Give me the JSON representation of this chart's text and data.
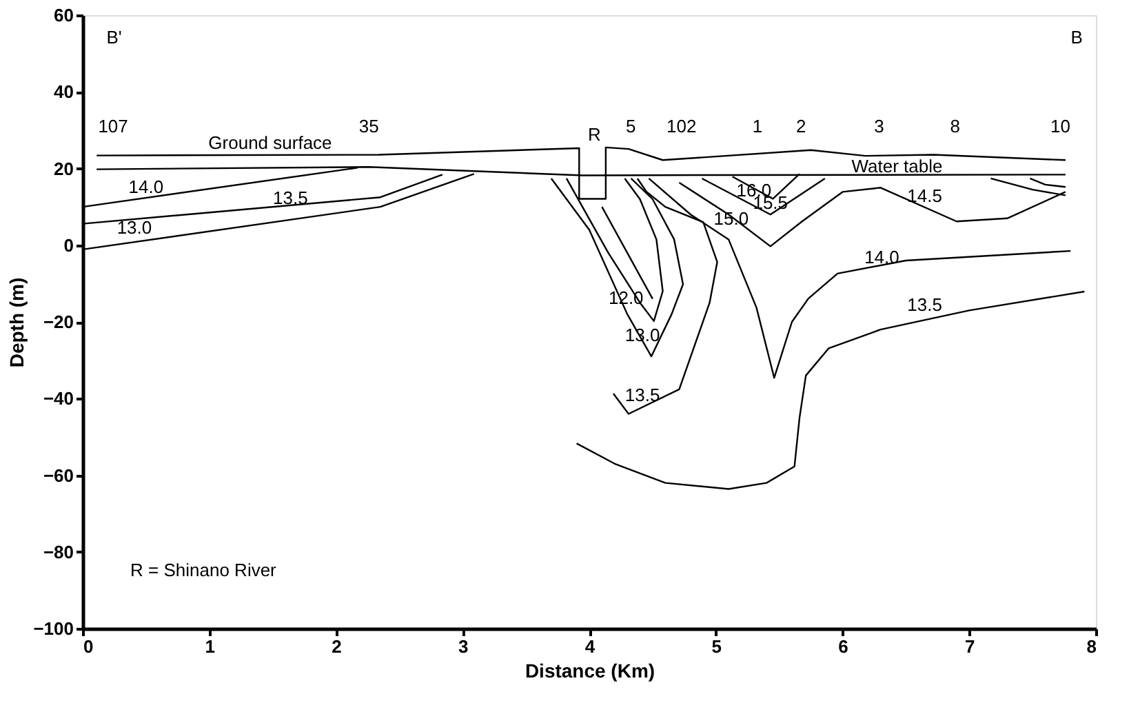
{
  "chart_data": {
    "type": "line",
    "xlabel": "Distance (Km)",
    "ylabel": "Depth (m)",
    "xlim": [
      0,
      8
    ],
    "xticks": [
      0,
      1,
      2,
      3,
      4,
      5,
      6,
      7,
      8
    ],
    "ylim": [
      -100,
      60
    ],
    "yticks": [
      -100,
      -80,
      -60,
      -40,
      -20,
      0,
      20,
      40,
      60
    ],
    "grid": false,
    "series": [
      {
        "color": "#000000",
        "x": [
          0.11,
          2.34,
          3.92,
          3.92,
          4.13,
          4.13,
          4.31,
          4.58,
          5.75,
          6.18,
          6.72,
          7.76
        ],
        "values": [
          23.4,
          23.6,
          25.3,
          12.1,
          12.1,
          25.5,
          25.1,
          22.2,
          24.8,
          23.3,
          23.6,
          22.2
        ]
      },
      {
        "color": "#000000",
        "x": [
          0.11,
          2.26,
          3.95,
          5.0,
          7.76
        ],
        "values": [
          19.8,
          20.4,
          18.2,
          18.3,
          18.4
        ]
      },
      {
        "color": "#000000",
        "x": [
          0.0,
          2.17
        ],
        "values": [
          10.0,
          20.2
        ]
      },
      {
        "color": "#000000",
        "x": [
          0.0,
          2.35,
          2.84
        ],
        "values": [
          5.6,
          12.5,
          18.4
        ]
      },
      {
        "color": "#000000",
        "x": [
          0.0,
          2.35,
          3.09
        ],
        "values": [
          -1.1,
          10.0,
          18.6
        ]
      },
      {
        "color": "#000000",
        "x": [
          3.82,
          4.15,
          4.4,
          4.51,
          4.58,
          4.53,
          4.4,
          4.28
        ],
        "values": [
          17.4,
          -2,
          -15,
          -19.8,
          -12,
          1.5,
          12,
          17.4
        ]
      },
      {
        "color": "#000000",
        "x": [
          3.7,
          4.0,
          4.3,
          4.49,
          4.65,
          4.74,
          4.67,
          4.5,
          4.33
        ],
        "values": [
          17.4,
          4,
          -18,
          -29,
          -18,
          -10.2,
          1.5,
          12,
          17.4
        ]
      },
      {
        "color": "#000000",
        "x": [
          4.19,
          4.31,
          4.71,
          4.95,
          5.01,
          4.9,
          4.6,
          4.45,
          4.38
        ],
        "values": [
          -38.7,
          -44,
          -37.6,
          -15,
          -4.4,
          6,
          10,
          14,
          17.4
        ]
      },
      {
        "color": "#000000",
        "x": [
          4.47,
          4.8,
          5.1,
          5.32,
          5.46,
          5.6,
          5.73,
          5.96,
          6.5,
          7.8
        ],
        "values": [
          17.4,
          8,
          1.5,
          -16.3,
          -34.6,
          -20,
          -13.9,
          -7.4,
          -4,
          -1.5
        ]
      },
      {
        "color": "#000000",
        "x": [
          4.71,
          5.1,
          5.43,
          5.68,
          6.0,
          6.3,
          6.9,
          7.3,
          7.76
        ],
        "values": [
          16.3,
          8,
          -0.3,
          6.2,
          13.9,
          15,
          6.2,
          7,
          13.9
        ]
      },
      {
        "color": "#000000",
        "x": [
          4.89,
          5.43,
          5.86
        ],
        "values": [
          17.4,
          8,
          17.4
        ]
      },
      {
        "color": "#000000",
        "x": [
          5.13,
          5.45,
          5.66
        ],
        "values": [
          17.9,
          12.1,
          18.6
        ]
      },
      {
        "color": "#000000",
        "x": [
          7.17,
          7.5,
          7.76
        ],
        "values": [
          17.4,
          14.5,
          13.0
        ]
      },
      {
        "color": "#000000",
        "x": [
          7.48,
          7.6,
          7.76
        ],
        "values": [
          17.4,
          15.8,
          15.2
        ]
      },
      {
        "color": "#000000",
        "x": [
          3.9,
          4.2,
          4.6,
          5.1,
          5.4,
          5.62,
          5.66,
          5.71,
          5.89,
          6.3,
          7.0,
          7.91
        ],
        "values": [
          -51.7,
          -57,
          -62,
          -63.6,
          -62,
          -57.7,
          -45,
          -34,
          -26.9,
          -22,
          -17,
          -12.1
        ]
      },
      {
        "color": "#000000",
        "x": [
          4.1,
          4.5
        ],
        "values": [
          10,
          -14
        ]
      }
    ],
    "annotations": [
      "B'",
      "B",
      "107",
      "35",
      "R",
      "5",
      "102",
      "1",
      "2",
      "3",
      "8",
      "10",
      "Ground surface",
      {
        "text": "Water table",
        "x": 6.43,
        "y": 20.4
      },
      "14.0",
      {
        "text": "13.5",
        "x": 1.64,
        "y": 12.1
      },
      "13.0",
      "16.0",
      {
        "text": "15.5",
        "x": 5.43,
        "y": 11
      },
      {
        "text": "15.0",
        "x": 5.12,
        "y": 6.8
      },
      "14.5",
      {
        "text": "14.0",
        "x": 6.31,
        "y": -3.3
      },
      "13.5",
      {
        "text": "12.0",
        "x": 4.29,
        "y": -13.8
      },
      "13.0",
      "13.5",
      "R = Shinano River"
    ]
  }
}
